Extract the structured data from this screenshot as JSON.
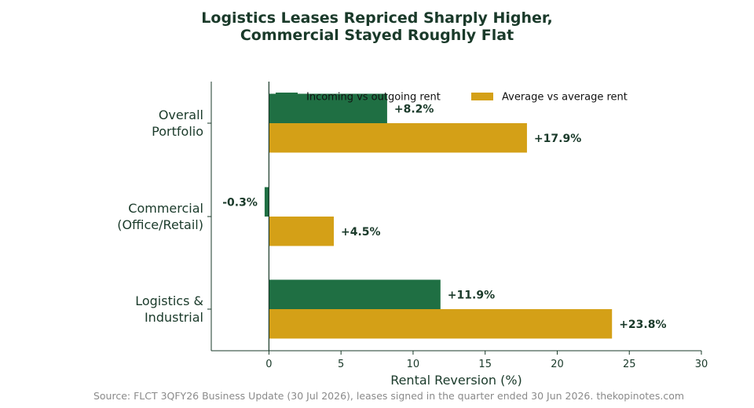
{
  "chart_data": {
    "type": "bar",
    "orientation": "horizontal",
    "title": "Logistics Leases Repriced Sharply Higher,\nCommercial Stayed Roughly Flat",
    "xlabel": "Rental Reversion (%)",
    "ylabel": "",
    "xlim": [
      -4,
      30
    ],
    "xticks": [
      0,
      5,
      10,
      15,
      20,
      25,
      30
    ],
    "grid": false,
    "legend_position": "top-center",
    "categories": [
      "Overall\nPortfolio",
      "Commercial\n(Office/Retail)",
      "Logistics &\nIndustrial"
    ],
    "series": [
      {
        "name": "Incoming vs outgoing rent",
        "color": "#1f6f43",
        "values": [
          8.2,
          -0.3,
          11.9
        ],
        "labels": [
          "+8.2%",
          "-0.3%",
          "+11.9%"
        ]
      },
      {
        "name": "Average vs average rent",
        "color": "#d4a017",
        "values": [
          17.9,
          4.5,
          23.8
        ],
        "labels": [
          "+17.9%",
          "+4.5%",
          "+23.8%"
        ]
      }
    ],
    "source": "Source: FLCT 3QFY26 Business Update (30 Jul 2026), leases signed in the quarter ended 30 Jun 2026. thekopinotes.com"
  },
  "colors": {
    "text": "#1a3a2a",
    "axis": "#1a3a2a",
    "source": "#8a8a8a"
  }
}
